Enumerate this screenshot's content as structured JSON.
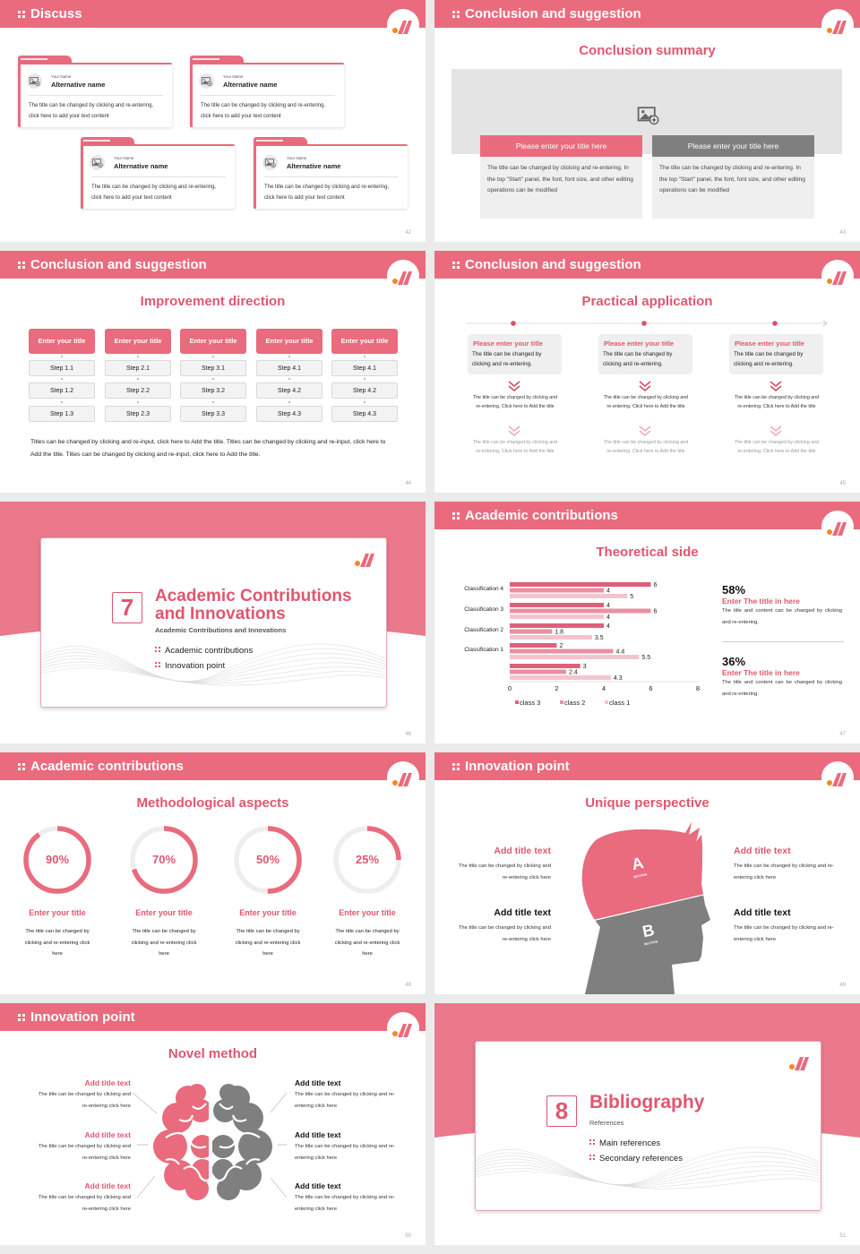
{
  "colors": {
    "accent": "#e96b7d",
    "accent_text": "#e0566f",
    "gray": "#7f7f7f",
    "logo_dot": "#f08a24"
  },
  "icons": {
    "header": "grid-dots-icon",
    "logo": "brand-logo-icon",
    "image": "image-placeholder-icon",
    "chevron": "double-chevron-down-icon"
  },
  "slides": [
    {
      "page": "42",
      "header": "Discuss",
      "cards": [
        {
          "label": "Your Name",
          "name": "Alternative name",
          "text": "The title can be changed by clicking and re-entering, click here to add your text content"
        },
        {
          "label": "Your Name",
          "name": "Alternative name",
          "text": "The title can be changed by clicking and re-entering, click here to add your text content"
        },
        {
          "label": "Your Name",
          "name": "Alternative name",
          "text": "The title can be changed by clicking and re-entering, click here to add your text content"
        },
        {
          "label": "Your Name",
          "name": "Alternative name",
          "text": "The title can be changed by clicking and re-entering, click here to add your text content"
        }
      ]
    },
    {
      "page": "43",
      "header": "Conclusion and suggestion",
      "title": "Conclusion summary",
      "panels": [
        {
          "title": "Please enter your title here",
          "text": "The title can be changed by clicking and re-entering. In the top \"Start\" panel, the font, font size, and other editing operations can be modified"
        },
        {
          "title": "Please enter your title here",
          "text": "The title can be changed by clicking and re-entering. In the top \"Start\" panel, the font, font size, and other editing operations can be modified"
        }
      ]
    },
    {
      "page": "44",
      "header": "Conclusion and suggestion",
      "title": "Improvement direction",
      "columns": [
        {
          "title": "Enter your title",
          "steps": [
            "Step 1.1",
            "Step 1.2",
            "Step 1.3"
          ]
        },
        {
          "title": "Enter your title",
          "steps": [
            "Step 2.1",
            "Step 2.2",
            "Step 2.3"
          ]
        },
        {
          "title": "Enter your title",
          "steps": [
            "Step 3.1",
            "Step 3.2",
            "Step 3.3"
          ]
        },
        {
          "title": "Enter your title",
          "steps": [
            "Step 4.1",
            "Step 4.2",
            "Step 4.3"
          ]
        },
        {
          "title": "Enter your title",
          "steps": [
            "Step 4.1",
            "Step 4.2",
            "Step 4.3"
          ]
        }
      ],
      "paragraph": "Titles can be changed by clicking and re-input, click here to Add the title. Titles can be changed by clicking and re-input, click here to Add the title. Titles can be changed by clicking and re-input, click here to Add the title."
    },
    {
      "page": "45",
      "header": "Conclusion and suggestion",
      "title": "Practical application",
      "items": [
        {
          "title": "Please enter your title",
          "text": "The title can be changed by clicking and re-entering.",
          "sub1": "The title can be changed by clicking and re-entering. Click here to Add the title",
          "sub2": "The title can be changed by clicking and re-entering. Click here to Add the title"
        },
        {
          "title": "Please enter your title",
          "text": "The title can be changed by clicking and re-entering.",
          "sub1": "The title can be changed by clicking and re-entering. Click here to Add the title",
          "sub2": "The title can be changed by clicking and re-entering. Click here to Add the title"
        },
        {
          "title": "Please enter your title",
          "text": "The title can be changed by clicking and re-entering.",
          "sub1": "The title can be changed by clicking and re-entering. Click here to Add the title",
          "sub2": "The title can be changed by clicking and re-entering. Click here to Add the title"
        }
      ]
    },
    {
      "page": "46",
      "number": "7",
      "title": "Academic Contributions and Innovations",
      "subtitle": "Academic Contributions and Innovations",
      "bullets": [
        "Academic contributions",
        "Innovation point"
      ]
    },
    {
      "page": "47",
      "header": "Academic contributions",
      "title": "Theoretical side",
      "stats": [
        {
          "value": "58%",
          "title": "Enter The title in here",
          "text": "The title and content can be changed by clicking and re-entering."
        },
        {
          "value": "36%",
          "title": "Enter The title in here",
          "text": "The title and content can be changed by clicking and re-entering."
        }
      ]
    },
    {
      "page": "48",
      "header": "Academic contributions",
      "title": "Methodological aspects",
      "rings": [
        {
          "value": 90,
          "label": "90%",
          "title": "Enter your title",
          "text": "The title can be changed by clicking and re-entering click here"
        },
        {
          "value": 70,
          "label": "70%",
          "title": "Enter your title",
          "text": "The title can be changed by clicking and re-entering click here"
        },
        {
          "value": 50,
          "label": "50%",
          "title": "Enter your title",
          "text": "The title can be changed by clicking and re-entering click here"
        },
        {
          "value": 25,
          "label": "25%",
          "title": "Enter your title",
          "text": "The title can be changed by clicking and re-entering click here"
        }
      ]
    },
    {
      "page": "49",
      "header": "Innovation point",
      "title": "Unique perspective",
      "left": [
        {
          "title": "Add title text",
          "text": "The title can be changed by clicking and re-entering click here"
        },
        {
          "title": "Add title text",
          "text": "The title can be changed by clicking and re-entering click here"
        }
      ],
      "right": [
        {
          "title": "Add title text",
          "text": "The title can be changed by clicking and re-entering click here"
        },
        {
          "title": "Add title text",
          "text": "The title can be changed by clicking and re-entering click here"
        }
      ],
      "section_a": "A",
      "section_b": "B",
      "section_label": "SECTION"
    },
    {
      "page": "50",
      "header": "Innovation point",
      "title": "Novel method",
      "left": [
        {
          "title": "Add title text",
          "text": "The title can be changed by clicking and re-entering click here"
        },
        {
          "title": "Add title text",
          "text": "The title can be changed by clicking and re-entering click here"
        },
        {
          "title": "Add title text",
          "text": "The title can be changed by clicking and re-entering click here"
        }
      ],
      "right": [
        {
          "title": "Add title text",
          "text": "The title can be changed by clicking and re-entering click here"
        },
        {
          "title": "Add title text",
          "text": "The title can be changed by clicking and re-entering click here"
        },
        {
          "title": "Add title text",
          "text": "The title can be changed by clicking and re-entering click here"
        }
      ]
    },
    {
      "page": "51",
      "number": "8",
      "title": "Bibliography",
      "subtitle": "References",
      "bullets": [
        "Main references",
        "Secondary references"
      ]
    }
  ],
  "chart_data": {
    "type": "bar",
    "orientation": "horizontal",
    "categories": [
      "",
      "Classification 1",
      "Classification 2",
      "Classification 3",
      "Classification 4"
    ],
    "series": [
      {
        "name": "class 3",
        "color": "#e0607a",
        "values": [
          3,
          2,
          4,
          4,
          6
        ]
      },
      {
        "name": "class 2",
        "color": "#eb8fa0",
        "values": [
          2.4,
          4.4,
          1.8,
          6,
          4
        ]
      },
      {
        "name": "class 1",
        "color": "#f4c4ce",
        "values": [
          4.3,
          5.5,
          3.5,
          4,
          5
        ]
      }
    ],
    "xlim": [
      0,
      8
    ],
    "xticks": [
      "0",
      "2",
      "4",
      "6",
      "8"
    ],
    "legend": "bottom",
    "grid": false,
    "title": "",
    "xlabel": "",
    "ylabel": ""
  }
}
